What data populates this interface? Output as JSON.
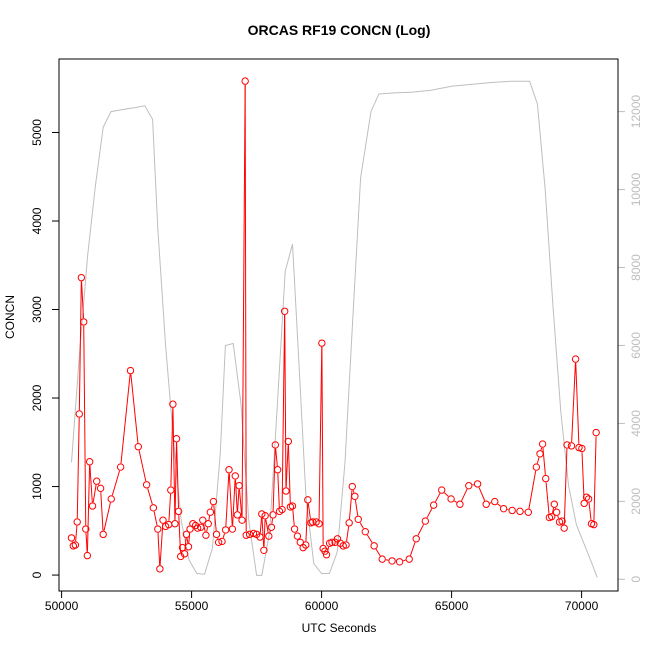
{
  "chart_data": {
    "type": "line",
    "title": "ORCAS RF19 CONCN (Log)",
    "xlabel": "UTC Seconds",
    "ylabel": "CONCN",
    "xlim": [
      49900,
      71400
    ],
    "ylim": [
      -180,
      5830
    ],
    "y2lim": [
      -300,
      13350
    ],
    "x_ticks": [
      50000,
      55000,
      60000,
      65000,
      70000
    ],
    "y_ticks": [
      0,
      1000,
      2000,
      3000,
      4000,
      5000
    ],
    "y2_ticks": [
      0,
      2000,
      4000,
      6000,
      8000,
      10000,
      12000
    ],
    "grid": false,
    "legend": "none",
    "series": [
      {
        "color": "#ff0000",
        "style": "line+open-circles",
        "axis": "left",
        "points": [
          [
            50380,
            420
          ],
          [
            50450,
            330
          ],
          [
            50530,
            340
          ],
          [
            50600,
            600
          ],
          [
            50680,
            1820
          ],
          [
            50760,
            3360
          ],
          [
            50850,
            2860
          ],
          [
            50930,
            520
          ],
          [
            50990,
            220
          ],
          [
            51080,
            1280
          ],
          [
            51190,
            780
          ],
          [
            51350,
            1060
          ],
          [
            51500,
            980
          ],
          [
            51600,
            460
          ],
          [
            51910,
            860
          ],
          [
            52270,
            1220
          ],
          [
            52650,
            2310
          ],
          [
            52950,
            1450
          ],
          [
            53270,
            1020
          ],
          [
            53530,
            760
          ],
          [
            53700,
            520
          ],
          [
            53780,
            70
          ],
          [
            53900,
            620
          ],
          [
            54000,
            550
          ],
          [
            54120,
            570
          ],
          [
            54200,
            960
          ],
          [
            54280,
            1930
          ],
          [
            54360,
            580
          ],
          [
            54420,
            1540
          ],
          [
            54500,
            720
          ],
          [
            54580,
            210
          ],
          [
            54650,
            310
          ],
          [
            54730,
            240
          ],
          [
            54800,
            460
          ],
          [
            54880,
            320
          ],
          [
            54940,
            520
          ],
          [
            55050,
            580
          ],
          [
            55150,
            560
          ],
          [
            55230,
            530
          ],
          [
            55350,
            540
          ],
          [
            55430,
            620
          ],
          [
            55550,
            450
          ],
          [
            55640,
            580
          ],
          [
            55720,
            710
          ],
          [
            55840,
            830
          ],
          [
            55960,
            460
          ],
          [
            56040,
            370
          ],
          [
            56170,
            380
          ],
          [
            56310,
            510
          ],
          [
            56440,
            1190
          ],
          [
            56570,
            520
          ],
          [
            56680,
            1120
          ],
          [
            56760,
            680
          ],
          [
            56830,
            1010
          ],
          [
            56940,
            620
          ],
          [
            57060,
            5580
          ],
          [
            57100,
            450
          ],
          [
            57230,
            460
          ],
          [
            57380,
            470
          ],
          [
            57500,
            460
          ],
          [
            57630,
            430
          ],
          [
            57700,
            690
          ],
          [
            57780,
            280
          ],
          [
            57830,
            670
          ],
          [
            57970,
            440
          ],
          [
            58070,
            540
          ],
          [
            58130,
            680
          ],
          [
            58220,
            1470
          ],
          [
            58310,
            1190
          ],
          [
            58380,
            720
          ],
          [
            58480,
            740
          ],
          [
            58580,
            2980
          ],
          [
            58630,
            950
          ],
          [
            58720,
            1510
          ],
          [
            58800,
            770
          ],
          [
            58880,
            780
          ],
          [
            58960,
            520
          ],
          [
            59070,
            440
          ],
          [
            59180,
            370
          ],
          [
            59290,
            310
          ],
          [
            59390,
            340
          ],
          [
            59470,
            850
          ],
          [
            59590,
            590
          ],
          [
            59660,
            600
          ],
          [
            59790,
            600
          ],
          [
            59900,
            580
          ],
          [
            60010,
            2620
          ],
          [
            60060,
            300
          ],
          [
            60130,
            270
          ],
          [
            60190,
            230
          ],
          [
            60310,
            360
          ],
          [
            60400,
            370
          ],
          [
            60520,
            370
          ],
          [
            60610,
            410
          ],
          [
            60720,
            360
          ],
          [
            60830,
            330
          ],
          [
            60940,
            340
          ],
          [
            61060,
            590
          ],
          [
            61180,
            1000
          ],
          [
            61280,
            890
          ],
          [
            61410,
            630
          ],
          [
            61680,
            490
          ],
          [
            62020,
            330
          ],
          [
            62330,
            180
          ],
          [
            62710,
            160
          ],
          [
            63000,
            150
          ],
          [
            63370,
            180
          ],
          [
            63640,
            410
          ],
          [
            63990,
            610
          ],
          [
            64310,
            790
          ],
          [
            64620,
            960
          ],
          [
            64980,
            860
          ],
          [
            65320,
            800
          ],
          [
            65660,
            1010
          ],
          [
            66000,
            1030
          ],
          [
            66330,
            800
          ],
          [
            66660,
            830
          ],
          [
            67000,
            750
          ],
          [
            67330,
            730
          ],
          [
            67630,
            720
          ],
          [
            67950,
            710
          ],
          [
            68260,
            1220
          ],
          [
            68400,
            1370
          ],
          [
            68500,
            1480
          ],
          [
            68620,
            1090
          ],
          [
            68760,
            650
          ],
          [
            68850,
            660
          ],
          [
            68950,
            800
          ],
          [
            69040,
            710
          ],
          [
            69150,
            600
          ],
          [
            69250,
            610
          ],
          [
            69330,
            530
          ],
          [
            69440,
            1470
          ],
          [
            69610,
            1460
          ],
          [
            69770,
            2440
          ],
          [
            69900,
            1440
          ],
          [
            70010,
            1430
          ],
          [
            70100,
            810
          ],
          [
            70190,
            880
          ],
          [
            70270,
            860
          ],
          [
            70380,
            580
          ],
          [
            70470,
            570
          ],
          [
            70560,
            1610
          ]
        ]
      },
      {
        "color": "#bebebe",
        "style": "line",
        "axis": "right",
        "points": [
          [
            50380,
            3000
          ],
          [
            50700,
            5900
          ],
          [
            51000,
            8300
          ],
          [
            51300,
            10100
          ],
          [
            51600,
            11600
          ],
          [
            51900,
            12000
          ],
          [
            52300,
            12050
          ],
          [
            52800,
            12100
          ],
          [
            53200,
            12150
          ],
          [
            53500,
            11800
          ],
          [
            53700,
            9000
          ],
          [
            54000,
            6000
          ],
          [
            54300,
            3600
          ],
          [
            54600,
            1500
          ],
          [
            54900,
            500
          ],
          [
            55200,
            150
          ],
          [
            55500,
            130
          ],
          [
            55800,
            800
          ],
          [
            56100,
            3200
          ],
          [
            56300,
            6000
          ],
          [
            56600,
            6050
          ],
          [
            56900,
            4500
          ],
          [
            57200,
            1500
          ],
          [
            57500,
            100
          ],
          [
            57700,
            100
          ],
          [
            58000,
            1200
          ],
          [
            58300,
            4500
          ],
          [
            58600,
            7900
          ],
          [
            58880,
            8600
          ],
          [
            59100,
            5900
          ],
          [
            59400,
            2100
          ],
          [
            59700,
            400
          ],
          [
            60000,
            150
          ],
          [
            60300,
            150
          ],
          [
            60600,
            700
          ],
          [
            60900,
            3000
          ],
          [
            61200,
            6700
          ],
          [
            61500,
            10300
          ],
          [
            61900,
            12000
          ],
          [
            62200,
            12450
          ],
          [
            62800,
            12480
          ],
          [
            63500,
            12500
          ],
          [
            64200,
            12550
          ],
          [
            65000,
            12650
          ],
          [
            65800,
            12700
          ],
          [
            66600,
            12750
          ],
          [
            67300,
            12780
          ],
          [
            68000,
            12780
          ],
          [
            68300,
            12200
          ],
          [
            68600,
            10000
          ],
          [
            68900,
            7000
          ],
          [
            69200,
            4300
          ],
          [
            69500,
            2400
          ],
          [
            69800,
            1400
          ],
          [
            70100,
            900
          ],
          [
            70400,
            400
          ],
          [
            70600,
            50
          ]
        ]
      }
    ]
  }
}
